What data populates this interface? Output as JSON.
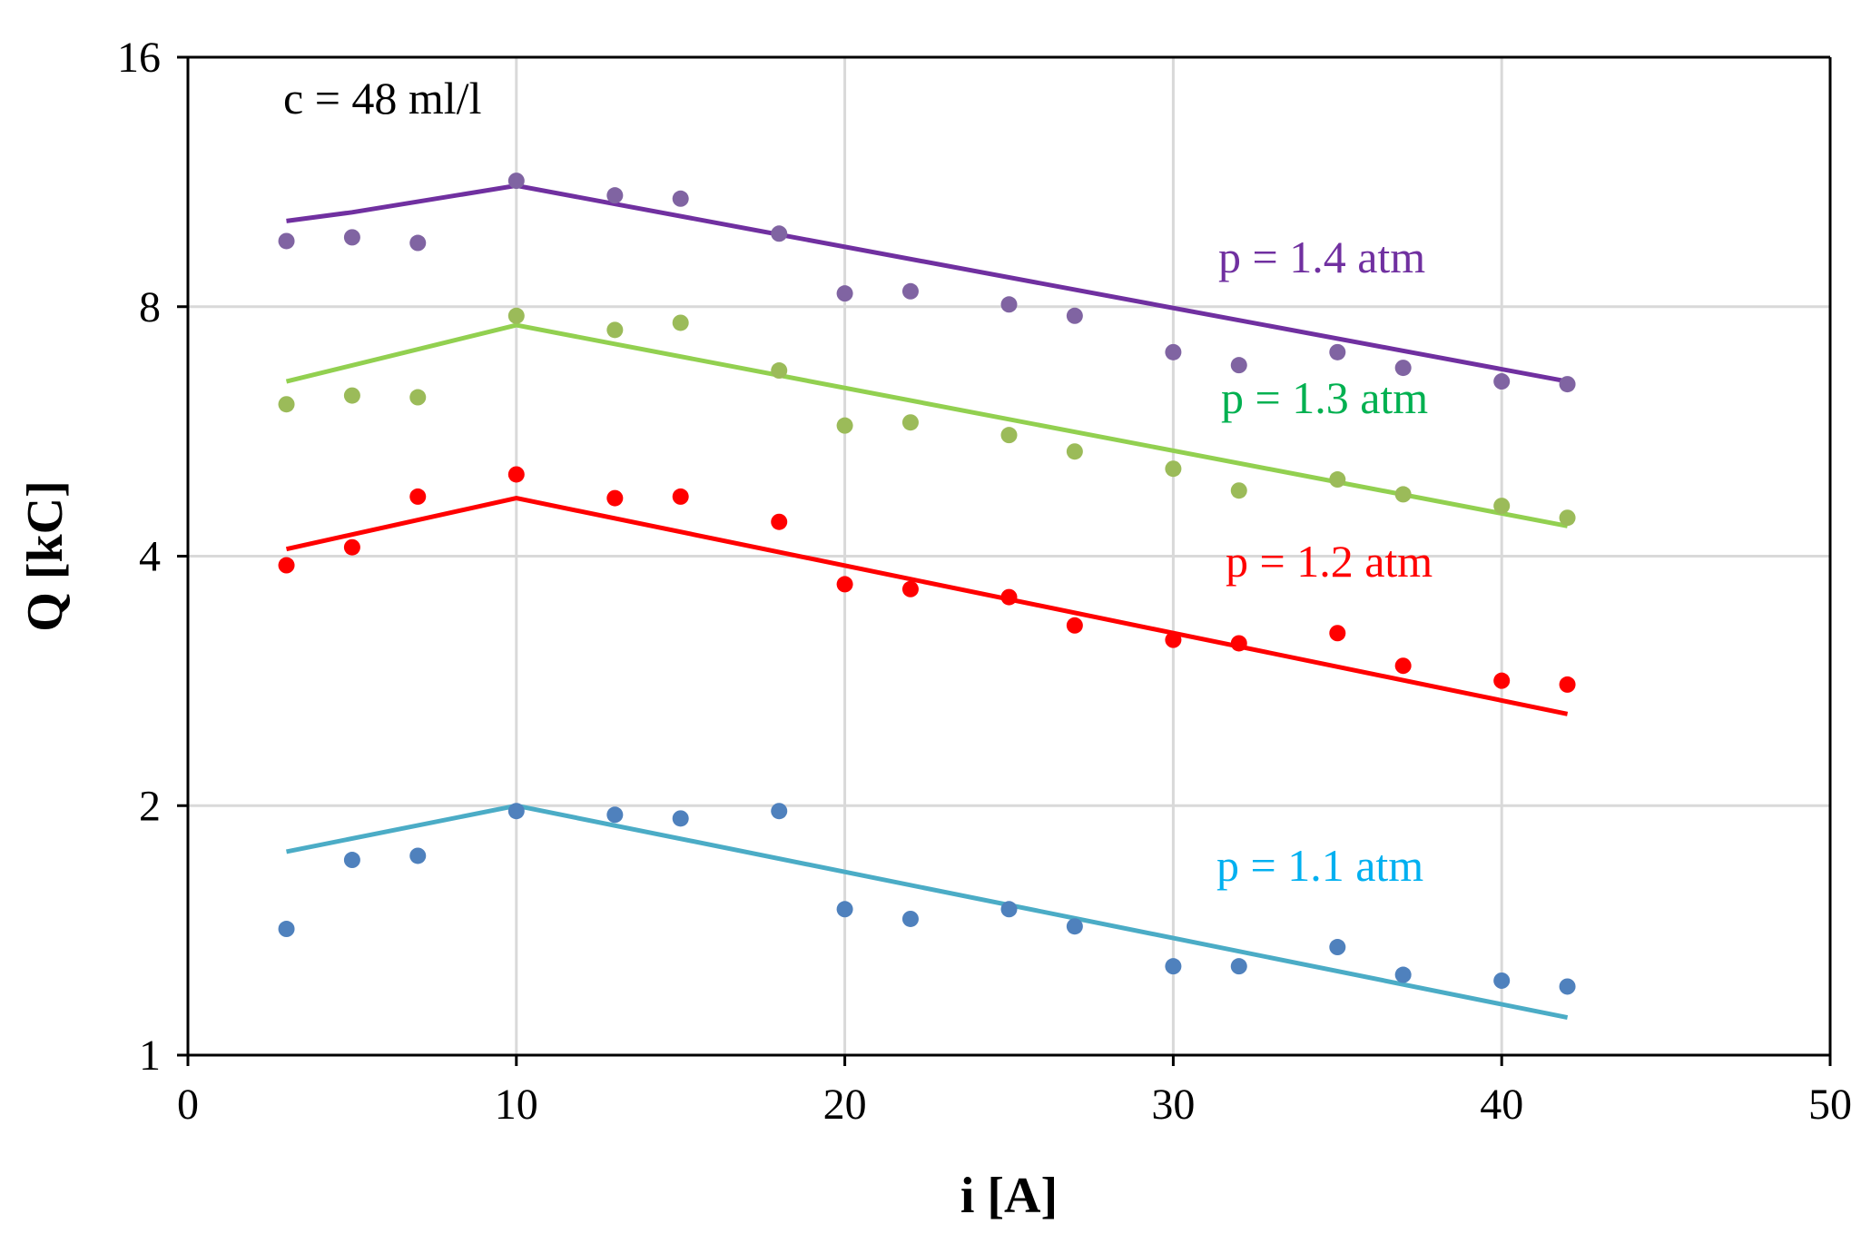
{
  "chart_data": {
    "type": "scatter",
    "title": "",
    "xlabel": "i [A]",
    "ylabel": "Q [kC]",
    "xlim": [
      0,
      50
    ],
    "ylim": [
      1,
      16
    ],
    "yscale": "log2",
    "xticks": [
      "0",
      "10",
      "20",
      "30",
      "40",
      "50"
    ],
    "yticks": [
      "1",
      "2",
      "4",
      "8",
      "16"
    ],
    "xtick_values": [
      0,
      10,
      20,
      30,
      40,
      50
    ],
    "ytick_values": [
      1,
      2,
      4,
      8,
      16
    ],
    "grid": true,
    "annotation": "c = 48 ml/l",
    "series": [
      {
        "name": "p = 1.4 atm",
        "marker_color": "#8064a2",
        "line_color": "#7030a0",
        "label_color": "#7030a0",
        "x": [
          3,
          5,
          7,
          10,
          13,
          15,
          18,
          20,
          22,
          25,
          27,
          30,
          32,
          35,
          37,
          40,
          42
        ],
        "y": [
          9.6,
          9.7,
          9.55,
          11.35,
          10.9,
          10.8,
          9.8,
          8.3,
          8.35,
          8.05,
          7.8,
          7.05,
          6.8,
          7.05,
          6.75,
          6.5,
          6.45
        ],
        "fit_x": [
          3,
          5,
          10,
          42
        ],
        "fit_y": [
          10.15,
          10.4,
          11.2,
          6.5
        ]
      },
      {
        "name": "p = 1.3 atm",
        "marker_color": "#9bbb59",
        "line_color": "#92d050",
        "label_color": "#00b050",
        "x": [
          3,
          5,
          7,
          10,
          13,
          15,
          18,
          20,
          22,
          25,
          27,
          30,
          32,
          35,
          37,
          40,
          42
        ],
        "y": [
          6.1,
          6.25,
          6.22,
          7.8,
          7.5,
          7.65,
          6.7,
          5.75,
          5.8,
          5.6,
          5.35,
          5.1,
          4.8,
          4.95,
          4.75,
          4.6,
          4.45
        ],
        "fit_x": [
          3,
          10,
          42
        ],
        "fit_y": [
          6.5,
          7.6,
          4.35
        ]
      },
      {
        "name": "p = 1.2 atm",
        "marker_color": "#ff0000",
        "line_color": "#ff0000",
        "label_color": "#ff0000",
        "x": [
          3,
          5,
          7,
          10,
          13,
          15,
          18,
          20,
          22,
          25,
          27,
          30,
          32,
          35,
          37,
          40,
          42
        ],
        "y": [
          3.9,
          4.1,
          4.72,
          5.02,
          4.7,
          4.72,
          4.4,
          3.7,
          3.65,
          3.57,
          3.3,
          3.17,
          3.14,
          3.23,
          2.95,
          2.83,
          2.8
        ],
        "fit_x": [
          3,
          10,
          42
        ],
        "fit_y": [
          4.08,
          4.7,
          2.58
        ]
      },
      {
        "name": "p = 1.1 atm",
        "marker_color": "#4f81bd",
        "line_color": "#4bacc6",
        "label_color": "#00b0f0",
        "x": [
          3,
          5,
          7,
          10,
          13,
          15,
          18,
          20,
          22,
          25,
          27,
          30,
          32,
          35,
          37,
          40,
          42
        ],
        "y": [
          1.42,
          1.72,
          1.74,
          1.97,
          1.95,
          1.93,
          1.97,
          1.5,
          1.46,
          1.5,
          1.43,
          1.28,
          1.28,
          1.35,
          1.25,
          1.23,
          1.21
        ],
        "fit_x": [
          3,
          10,
          42
        ],
        "fit_y": [
          1.76,
          2.0,
          1.11
        ]
      }
    ]
  }
}
